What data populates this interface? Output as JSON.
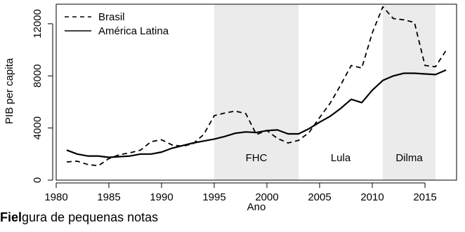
{
  "chart_data": {
    "type": "line",
    "xlabel": "Ano",
    "ylabel": "PIB per capita",
    "xlim": [
      1980,
      2018
    ],
    "ylim": [
      0,
      13500
    ],
    "x_ticks": [
      1980,
      1985,
      1990,
      1995,
      2000,
      2005,
      2010,
      2015
    ],
    "y_ticks": [
      0,
      4000,
      8000,
      12000
    ],
    "legend_position": "top-left",
    "shaded_periods": [
      {
        "label": "FHC",
        "start": 1995,
        "end": 2003,
        "color": "#ebebeb"
      },
      {
        "label": "Lula",
        "start": 2003,
        "end": 2011,
        "color": "#ffffff"
      },
      {
        "label": "Dilma",
        "start": 2011,
        "end": 2016,
        "color": "#ebebeb"
      }
    ],
    "series": [
      {
        "name": "Brasil",
        "style": "dashed",
        "x": [
          1981,
          1982,
          1983,
          1984,
          1985,
          1986,
          1987,
          1988,
          1989,
          1990,
          1991,
          1992,
          1993,
          1994,
          1995,
          1996,
          1997,
          1998,
          1999,
          2000,
          2001,
          2002,
          2003,
          2004,
          2005,
          2006,
          2007,
          2008,
          2009,
          2010,
          2011,
          2012,
          2013,
          2014,
          2015,
          2016,
          2017
        ],
        "y": [
          1400,
          1450,
          1200,
          1100,
          1650,
          1950,
          2100,
          2300,
          2950,
          3100,
          2700,
          2600,
          2800,
          3500,
          4950,
          5150,
          5300,
          5100,
          3500,
          3800,
          3200,
          2850,
          3050,
          3650,
          4800,
          5900,
          7300,
          8800,
          8600,
          11300,
          13300,
          12400,
          12300,
          12100,
          8800,
          8700,
          9950
        ]
      },
      {
        "name": "América Latina",
        "style": "solid",
        "x": [
          1981,
          1982,
          1983,
          1984,
          1985,
          1986,
          1987,
          1988,
          1989,
          1990,
          1991,
          1992,
          1993,
          1994,
          1995,
          1996,
          1997,
          1998,
          1999,
          2000,
          2001,
          2002,
          2003,
          2004,
          2005,
          2006,
          2007,
          2008,
          2009,
          2010,
          2011,
          2012,
          2013,
          2014,
          2015,
          2016,
          2017
        ],
        "y": [
          2300,
          2000,
          1850,
          1850,
          1750,
          1800,
          1850,
          2000,
          2000,
          2150,
          2450,
          2650,
          2850,
          3000,
          3150,
          3350,
          3600,
          3700,
          3650,
          3800,
          3850,
          3550,
          3550,
          3950,
          4450,
          4900,
          5500,
          6200,
          5950,
          6900,
          7650,
          8000,
          8200,
          8200,
          8150,
          8100,
          8450
        ]
      }
    ]
  },
  "caption": {
    "bold": "Fiel",
    "rest": "gura de pequenas notas"
  },
  "colors": {
    "shade": "#ebebeb",
    "line": "#000000"
  }
}
